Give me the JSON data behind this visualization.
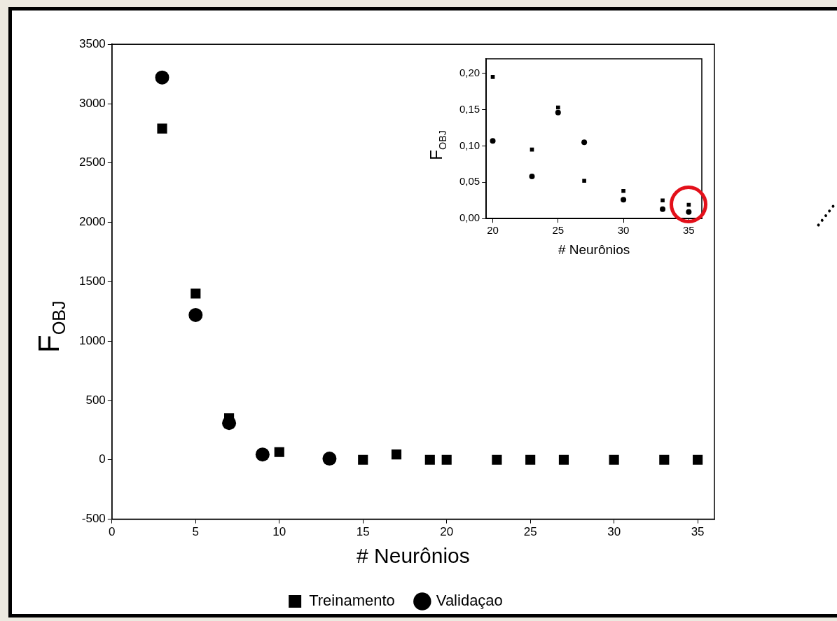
{
  "chart_data": [
    {
      "type": "scatter",
      "xlabel": "# Neurônios",
      "ylabel": "F$_{OBJ}$",
      "xlim": [
        0,
        36
      ],
      "xticks": [
        0,
        5,
        10,
        15,
        20,
        25,
        30,
        35
      ],
      "ylim": [
        -500,
        3500
      ],
      "yticks": [
        -500,
        0,
        500,
        1000,
        1500,
        2000,
        2500,
        3000,
        3500
      ],
      "grid": false,
      "legend": "bottom",
      "x": [
        3,
        5,
        7,
        9,
        10,
        13,
        15,
        17,
        19,
        20,
        23,
        25,
        27,
        30,
        33,
        35
      ],
      "series": [
        {
          "name": "Treinamento",
          "color": "#000000",
          "marker": "square",
          "values": [
            2790,
            1400,
            350,
            null,
            65,
            null,
            0,
            45,
            0,
            0,
            0,
            0,
            0,
            0,
            0,
            0
          ]
        },
        {
          "name": "Validaçao",
          "color": "#000000",
          "marker": "circle",
          "values": [
            3220,
            1220,
            310,
            45,
            null,
            10,
            null,
            null,
            null,
            null,
            null,
            null,
            null,
            null,
            null,
            null
          ]
        }
      ]
    },
    {
      "type": "scatter",
      "xlabel": "# Neurônios",
      "ylabel": "F$_{OBJ}$",
      "xlim": [
        19.5,
        36
      ],
      "xticks": [
        20,
        25,
        30,
        35
      ],
      "ylim": [
        0,
        0.22
      ],
      "yticks": [
        {
          "value": 0,
          "label": "0,00"
        },
        {
          "value": 0.05,
          "label": "0,05"
        },
        {
          "value": 0.1,
          "label": "0,10"
        },
        {
          "value": 0.15,
          "label": "0,15"
        },
        {
          "value": 0.2,
          "label": "0,20"
        }
      ],
      "grid": false,
      "legend": false,
      "x": [
        20,
        23,
        25,
        27,
        30,
        33,
        35
      ],
      "series": [
        {
          "color": "#000000",
          "marker": "square",
          "values": [
            0.195,
            0.095,
            0.153,
            0.052,
            0.038,
            0.025,
            0.019
          ]
        },
        {
          "color": "#000000",
          "marker": "circle",
          "values": [
            0.107,
            0.058,
            0.146,
            0.105,
            0.026,
            0.013,
            0.009
          ]
        }
      ]
    }
  ]
}
